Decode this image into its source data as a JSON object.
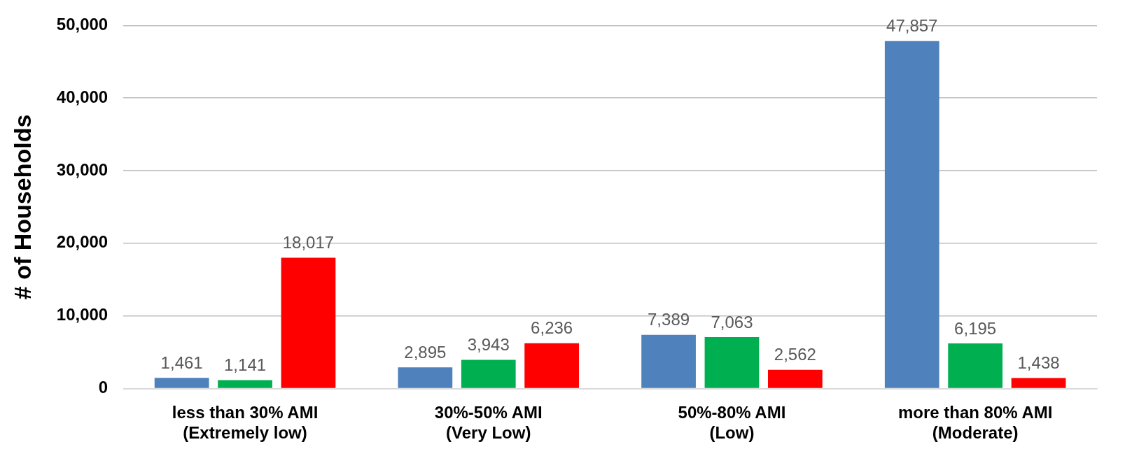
{
  "chart_data": {
    "type": "bar",
    "ylabel": "# of Households",
    "categories": [
      "less than 30% AMI\n(Extremely low)",
      "30%-50% AMI\n(Very Low)",
      "50%-80% AMI\n(Low)",
      "more than 80% AMI\n(Moderate)"
    ],
    "series": [
      {
        "color": "#4f81bd",
        "values": [
          1461,
          2895,
          7389,
          47857
        ],
        "value_labels": [
          "1,461",
          "2,895",
          "7,389",
          "47,857"
        ]
      },
      {
        "color": "#00b050",
        "values": [
          1141,
          3943,
          7063,
          6195
        ],
        "value_labels": [
          "1,141",
          "3,943",
          "7,063",
          "6,195"
        ]
      },
      {
        "color": "#ff0000",
        "values": [
          18017,
          6236,
          2562,
          1438
        ],
        "value_labels": [
          "18,017",
          "6,236",
          "2,562",
          "1,438"
        ]
      }
    ],
    "ylim": [
      0,
      50000
    ],
    "yticks": [
      0,
      {
        "value": 10000,
        "label": "10,000"
      },
      {
        "value": 20000,
        "label": "20,000"
      },
      {
        "value": 30000,
        "label": "30,000"
      },
      {
        "value": 40000,
        "label": "40,000"
      },
      {
        "value": 50000,
        "label": "50,000"
      }
    ],
    "grid": "y",
    "legend": false
  }
}
